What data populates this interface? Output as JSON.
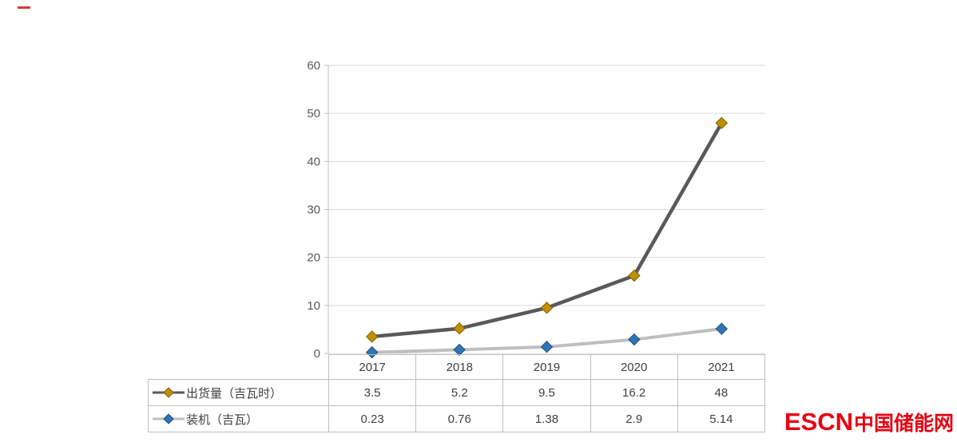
{
  "chart_data": {
    "type": "line",
    "title": "",
    "xlabel": "",
    "ylabel": "",
    "categories": [
      "2017",
      "2018",
      "2019",
      "2020",
      "2021"
    ],
    "series": [
      {
        "name": "出货量（吉瓦时）",
        "values": [
          3.5,
          5.2,
          9.5,
          16.2,
          48
        ],
        "line_color": "#595959",
        "line_width": 4.5,
        "marker": "diamond",
        "marker_color": "#BF9000",
        "marker_edge": "#7F6000"
      },
      {
        "name": "装机（吉瓦）",
        "values": [
          0.23,
          0.76,
          1.38,
          2.9,
          5.14
        ],
        "line_color": "#BFBFBF",
        "line_width": 4,
        "marker": "diamond",
        "marker_color": "#2E75B6",
        "marker_edge": "#1F4E79"
      }
    ],
    "ylim": [
      0,
      60
    ],
    "yticks": [
      0,
      10,
      20,
      30,
      40,
      50,
      60
    ],
    "grid": true,
    "grid_color": "#D9D9D9",
    "axis_color": "#BFBFBF",
    "legend_position": "table-left"
  },
  "table": {
    "corner": "",
    "year_headers": [
      "2017",
      "2018",
      "2019",
      "2020",
      "2021"
    ]
  },
  "logo": {
    "escn": "ESCN",
    "site": "中国储能网",
    "color": "#E60012"
  }
}
